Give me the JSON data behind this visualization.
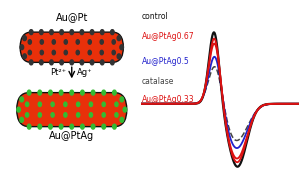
{
  "left_panel": {
    "top_label": "Au@Pt",
    "bottom_label": "Au@PtAg",
    "arrow_label_left": "Pt²⁺",
    "arrow_label_right": "Ag⁺",
    "nanorod_color": "#e8300a",
    "dot_color_black": "#333333",
    "dot_color_green": "#33bb33",
    "border_color": "#111111"
  },
  "right_panel": {
    "labels": [
      "control",
      "Au@PtAg0.67",
      "Au@PtAg0.5",
      "catalase",
      "Au@PtAg0.33"
    ],
    "colors": [
      "#111111",
      "#dd1111",
      "#2222cc",
      "#444444",
      "#dd1111"
    ],
    "linestyles": [
      "-",
      "-",
      "-",
      "-",
      "-"
    ],
    "linewidths": [
      1.6,
      1.3,
      1.3,
      1.1,
      1.3
    ]
  },
  "bg_color": "#ffffff"
}
